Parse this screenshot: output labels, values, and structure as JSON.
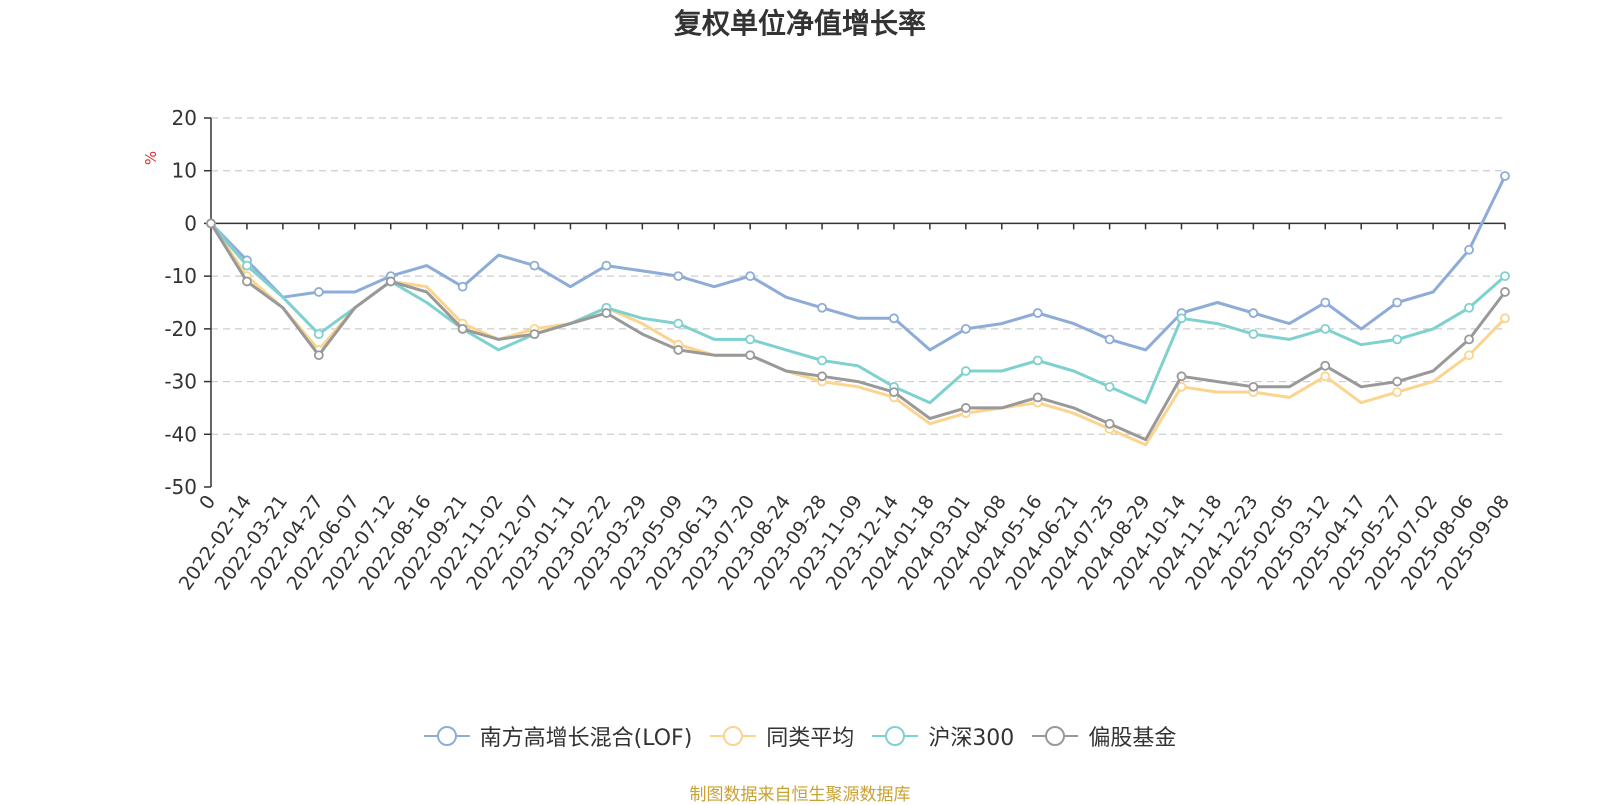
{
  "chart_data": {
    "type": "line",
    "title": "复权单位净值增长率",
    "ylabel": "%",
    "ylim": [
      -50,
      20
    ],
    "yticks": [
      20,
      10,
      0,
      -10,
      -20,
      -30,
      -40,
      -50
    ],
    "grid": true,
    "legend_position": "bottom",
    "x": [
      "0",
      "2022-02-14",
      "2022-03-21",
      "2022-04-27",
      "2022-06-07",
      "2022-07-12",
      "2022-08-16",
      "2022-09-21",
      "2022-11-02",
      "2022-12-07",
      "2023-01-11",
      "2023-02-22",
      "2023-03-29",
      "2023-05-09",
      "2023-06-13",
      "2023-07-20",
      "2023-08-24",
      "2023-09-28",
      "2023-11-09",
      "2023-12-14",
      "2024-01-18",
      "2024-03-01",
      "2024-04-08",
      "2024-05-16",
      "2024-06-21",
      "2024-07-25",
      "2024-08-29",
      "2024-10-14",
      "2024-11-18",
      "2024-12-23",
      "2025-02-05",
      "2025-03-12",
      "2025-04-17",
      "2025-05-27",
      "2025-07-02",
      "2025-08-06",
      "2025-09-08"
    ],
    "series": [
      {
        "name": "南方高增长混合(LOF)",
        "color": "#8eacd8",
        "values": [
          0,
          -7,
          -14,
          -13,
          -13,
          -10,
          -8,
          -12,
          -6,
          -8,
          -12,
          -8,
          -9,
          -10,
          -12,
          -10,
          -14,
          -16,
          -18,
          -18,
          -24,
          -20,
          -19,
          -17,
          -19,
          -22,
          -24,
          -17,
          -15,
          -17,
          -19,
          -15,
          -20,
          -15,
          -13,
          -5,
          9
        ]
      },
      {
        "name": "同类平均",
        "color": "#fbd48e",
        "values": [
          0,
          -10,
          -16,
          -24,
          -16,
          -11,
          -12,
          -19,
          -22,
          -20,
          -19,
          -16,
          -19,
          -23,
          -25,
          -25,
          -28,
          -30,
          -31,
          -33,
          -38,
          -36,
          -35,
          -34,
          -36,
          -39,
          -42,
          -31,
          -32,
          -32,
          -33,
          -29,
          -34,
          -32,
          -30,
          -25,
          -18
        ]
      },
      {
        "name": "沪深300",
        "color": "#7fd1d0",
        "values": [
          0,
          -8,
          -14,
          -21,
          -16,
          -11,
          -15,
          -20,
          -24,
          -21,
          -19,
          -16,
          -18,
          -19,
          -22,
          -22,
          -24,
          -26,
          -27,
          -31,
          -34,
          -28,
          -28,
          -26,
          -28,
          -31,
          -34,
          -18,
          -19,
          -21,
          -22,
          -20,
          -23,
          -22,
          -20,
          -16,
          -10
        ]
      },
      {
        "name": "偏股基金",
        "color": "#999999",
        "values": [
          0,
          -11,
          -16,
          -25,
          -16,
          -11,
          -13,
          -20,
          -22,
          -21,
          -19,
          -17,
          -21,
          -24,
          -25,
          -25,
          -28,
          -29,
          -30,
          -32,
          -37,
          -35,
          -35,
          -33,
          -35,
          -38,
          -41,
          -29,
          -30,
          -31,
          -31,
          -27,
          -31,
          -30,
          -28,
          -22,
          -13
        ]
      }
    ]
  },
  "source_note": "制图数据来自恒生聚源数据库"
}
